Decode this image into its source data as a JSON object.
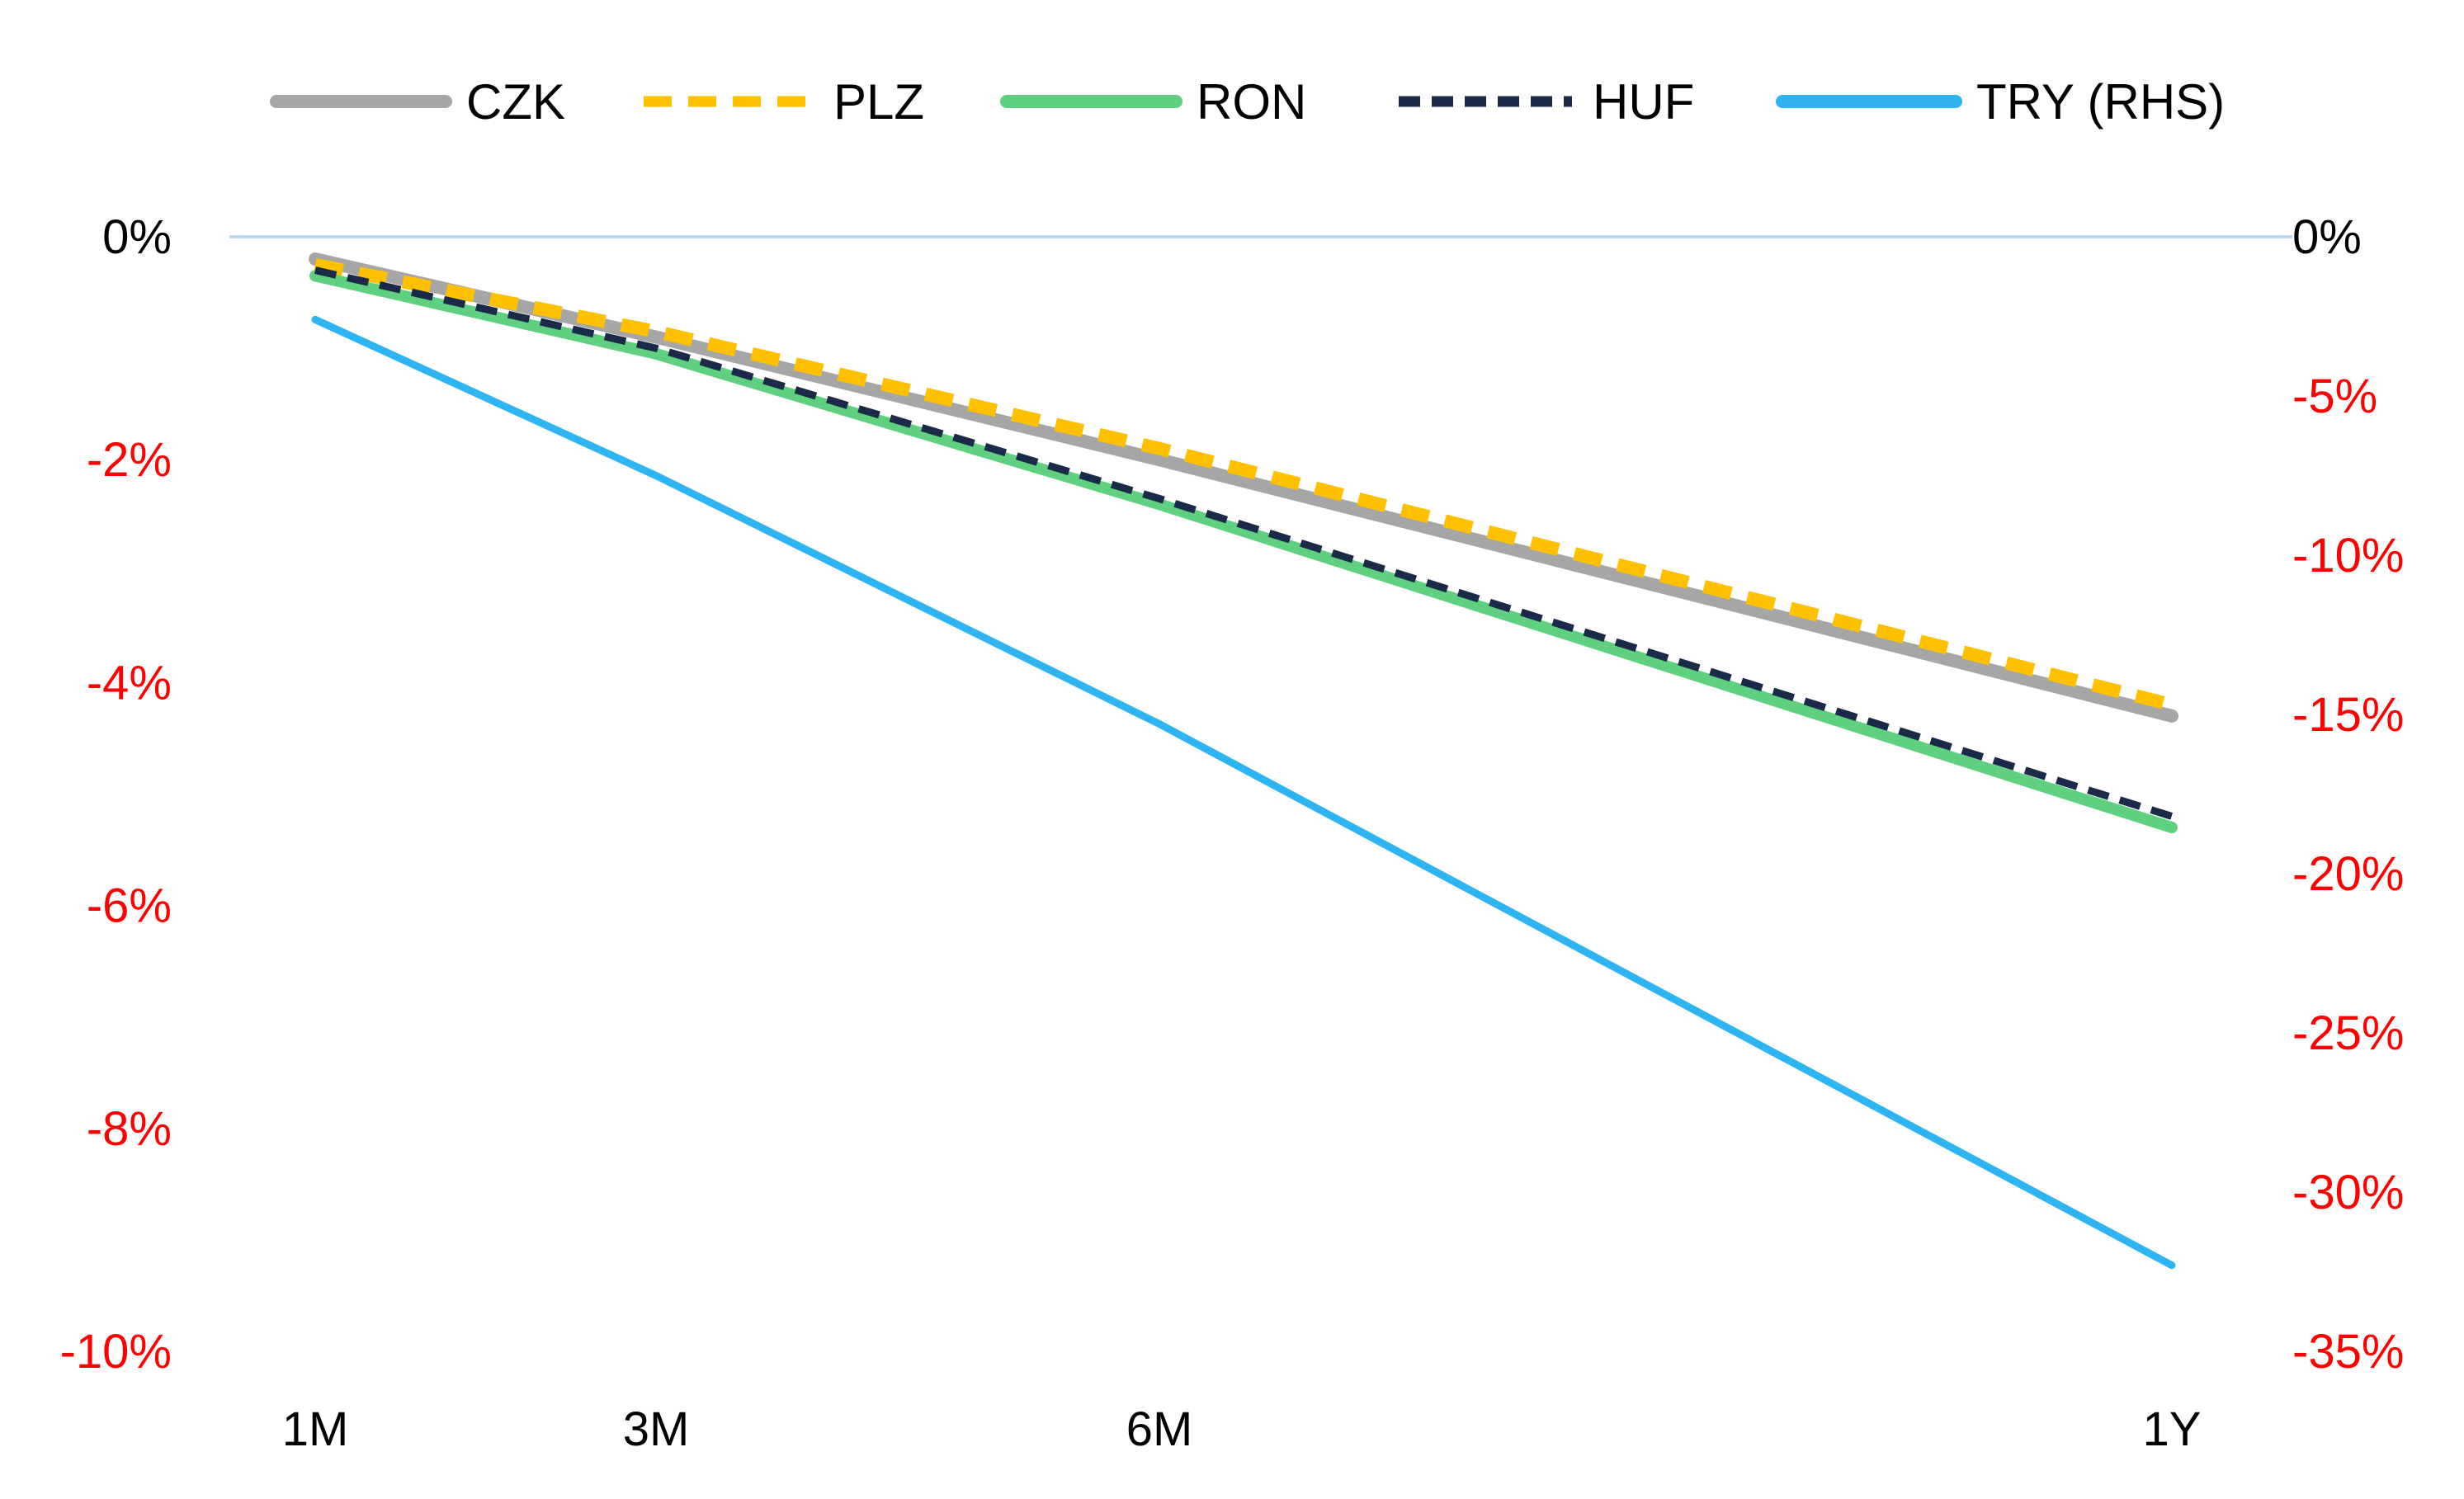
{
  "chart_data": {
    "type": "line",
    "title": "",
    "xlabel": "",
    "ylabel": "",
    "x": [
      "1M",
      "3M",
      "6M",
      "1Y"
    ],
    "x_months": [
      1,
      3,
      6,
      12
    ],
    "left_axis": {
      "ylim": [
        -10,
        0
      ],
      "ticks": [
        0,
        -2,
        -4,
        -6,
        -8,
        -10
      ],
      "tick_labels": [
        "0%",
        "-2%",
        "-4%",
        "-6%",
        "-8%",
        "-10%"
      ]
    },
    "right_axis": {
      "ylim": [
        -35,
        0
      ],
      "ticks": [
        0,
        -5,
        -10,
        -15,
        -20,
        -25,
        -30,
        -35
      ],
      "tick_labels": [
        "0%",
        "-5%",
        "-10%",
        "-15%",
        "-20%",
        "-25%",
        "-30%",
        "-35%"
      ]
    },
    "grid": false,
    "zero_line": true,
    "legend_position": "top",
    "series": [
      {
        "name": "CZK",
        "axis": "left",
        "values": [
          -0.2,
          -0.9,
          -2.0,
          -4.3
        ],
        "color": "#A6A6A6",
        "style": "solid"
      },
      {
        "name": "PLZ",
        "axis": "left",
        "values": [
          -0.25,
          -0.85,
          -1.9,
          -4.2
        ],
        "color": "#FFC000",
        "style": "dashed"
      },
      {
        "name": "RON",
        "axis": "left",
        "values": [
          -0.35,
          -1.05,
          -2.4,
          -5.3
        ],
        "color": "#5FD07F",
        "style": "solid"
      },
      {
        "name": "HUF",
        "axis": "left",
        "values": [
          -0.3,
          -1.0,
          -2.35,
          -5.2
        ],
        "color": "#1B2A49",
        "style": "dashed"
      },
      {
        "name": "TRY (RHS)",
        "axis": "right",
        "values": [
          -2.6,
          -7.5,
          -15.3,
          -32.3
        ],
        "color": "#2EB4F0",
        "style": "solid"
      }
    ],
    "colors": {
      "zero_line": "#BDD7EE",
      "negative_tick": "#FF0000",
      "zero_tick": "#000000",
      "x_tick": "#000000"
    }
  }
}
